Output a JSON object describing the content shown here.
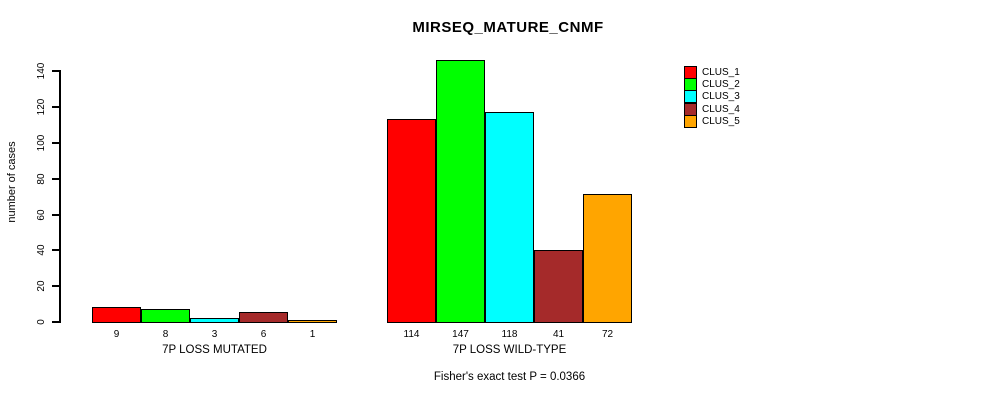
{
  "title": "MIRSEQ_MATURE_CNMF",
  "chart_data": {
    "type": "bar",
    "title": "MIRSEQ_MATURE_CNMF",
    "ylabel": "number of cases",
    "xlabel": "",
    "ylim": [
      0,
      150
    ],
    "yticks": [
      0,
      20,
      40,
      60,
      80,
      100,
      120,
      140
    ],
    "grid": false,
    "bar_borders": "#000000",
    "background": "#ffffff",
    "legend_position": "top-right",
    "legend": [
      {
        "label": "CLUS_1",
        "color": "#FF0000"
      },
      {
        "label": "CLUS_2",
        "color": "#00FF00"
      },
      {
        "label": "CLUS_3",
        "color": "#00FFFF"
      },
      {
        "label": "CLUS_4",
        "color": "#A52A2A"
      },
      {
        "label": "CLUS_5",
        "color": "#FFA500"
      }
    ],
    "categories": [
      "7P LOSS MUTATED",
      "7P LOSS WILD-TYPE"
    ],
    "series": [
      {
        "name": "CLUS_1",
        "color": "#FF0000",
        "values": [
          9,
          114
        ]
      },
      {
        "name": "CLUS_2",
        "color": "#00FF00",
        "values": [
          8,
          147
        ]
      },
      {
        "name": "CLUS_3",
        "color": "#00FFFF",
        "values": [
          3,
          118
        ]
      },
      {
        "name": "CLUS_4",
        "color": "#A52A2A",
        "values": [
          6,
          41
        ]
      },
      {
        "name": "CLUS_5",
        "color": "#FFA500",
        "values": [
          1,
          72
        ]
      }
    ],
    "bar_value_labels_shown": true,
    "annotation": "Fisher's exact test P = 0.0366"
  }
}
